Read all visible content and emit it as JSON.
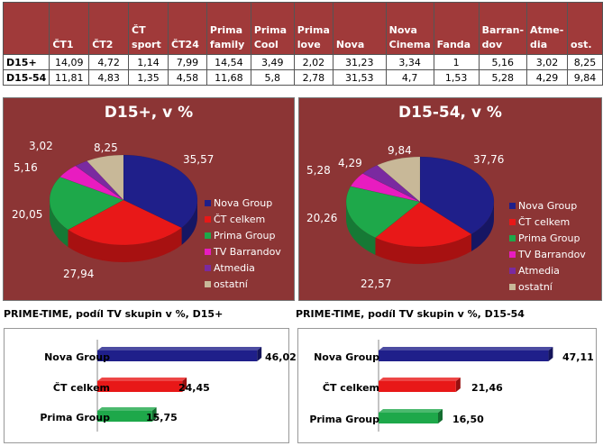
{
  "table": {
    "columns": [
      "ČT1",
      "ČT2",
      "ČT sport",
      "ČT24",
      "Prima family",
      "Prima Cool",
      "Prima love",
      "Nova",
      "Nova Cinema",
      "Fanda",
      "Barran-dov",
      "Atme-dia",
      "ost."
    ],
    "rows": [
      {
        "label": "D15+",
        "values": [
          "14,09",
          "4,72",
          "1,14",
          "7,99",
          "14,54",
          "3,49",
          "2,02",
          "31,23",
          "3,34",
          "1",
          "5,16",
          "3,02",
          "8,25"
        ]
      },
      {
        "label": "D15-54",
        "values": [
          "11,81",
          "4,83",
          "1,35",
          "4,58",
          "11,68",
          "5,8",
          "2,78",
          "31,53",
          "4,7",
          "1,53",
          "5,28",
          "4,29",
          "9,84"
        ]
      }
    ]
  },
  "chart_data": [
    {
      "type": "pie",
      "title": "D15+, v %",
      "categories": [
        "Nova Group",
        "ČT celkem",
        "Prima Group",
        "TV Barrandov",
        "Atmedia",
        "ostatní"
      ],
      "values": [
        35.57,
        27.94,
        20.05,
        5.16,
        3.02,
        8.25
      ],
      "value_labels": [
        "35,57",
        "27,94",
        "20,05",
        "5,16",
        "3,02",
        "8,25"
      ],
      "colors": [
        "#1f1f8a",
        "#e81818",
        "#1ea84a",
        "#e81cc0",
        "#7a2aa0",
        "#c8b898"
      ],
      "legend_position": "right"
    },
    {
      "type": "pie",
      "title": "D15-54, v %",
      "categories": [
        "Nova Group",
        "ČT celkem",
        "Prima Group",
        "TV Barrandov",
        "Atmedia",
        "ostatní"
      ],
      "values": [
        37.76,
        22.57,
        20.26,
        5.28,
        4.29,
        9.84
      ],
      "value_labels": [
        "37,76",
        "22,57",
        "20,26",
        "5,28",
        "4,29",
        "9,84"
      ],
      "colors": [
        "#1f1f8a",
        "#e81818",
        "#1ea84a",
        "#e81cc0",
        "#7a2aa0",
        "#c8b898"
      ],
      "legend_position": "right"
    },
    {
      "type": "bar",
      "orientation": "horizontal",
      "title": "PRIME-TIME, podíl TV skupin v %, D15+",
      "categories": [
        "Nova Group",
        "ČT celkem",
        "Prima Group"
      ],
      "values": [
        46.02,
        24.45,
        15.75
      ],
      "value_labels": [
        "46,02",
        "24,45",
        "15,75"
      ],
      "colors": [
        "#1f1f8a",
        "#e81818",
        "#1ea84a"
      ]
    },
    {
      "type": "bar",
      "orientation": "horizontal",
      "title": "PRIME-TIME, podíl TV skupin v %, D15-54",
      "categories": [
        "Nova Group",
        "ČT celkem",
        "Prima Group"
      ],
      "values": [
        47.11,
        21.46,
        16.5
      ],
      "value_labels": [
        "47,11",
        "21,46",
        "16,50"
      ],
      "colors": [
        "#1f1f8a",
        "#e81818",
        "#1ea84a"
      ]
    }
  ]
}
